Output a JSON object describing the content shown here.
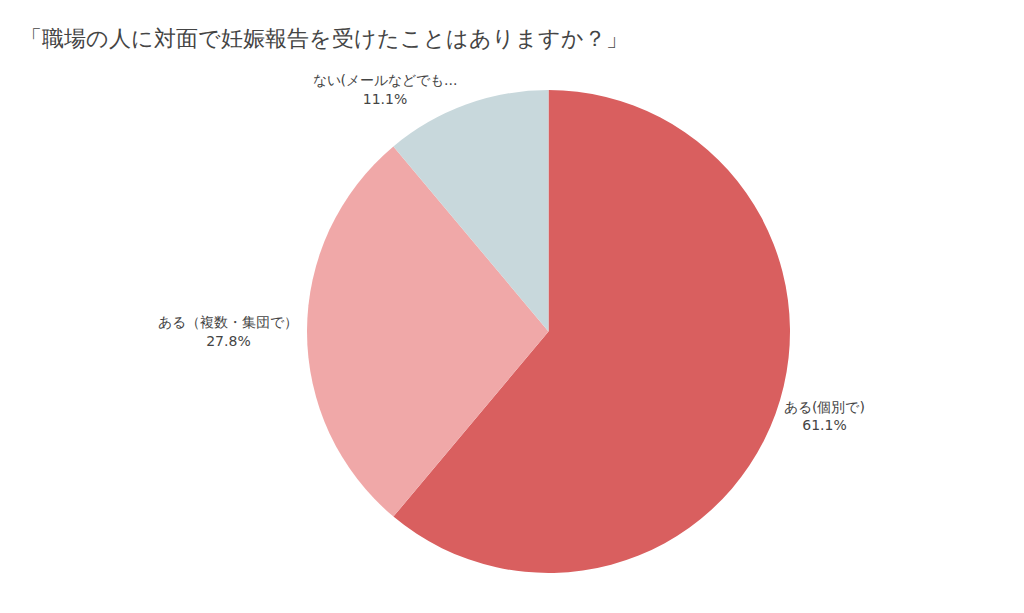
{
  "chart_data": {
    "type": "pie",
    "title": "「職場の人に対面で妊娠報告を受けたことはありますか？」",
    "categories": [
      "ある(個別で)",
      "ある（複数・集団で）",
      "ない(メールなどでも..."
    ],
    "values": [
      61.1,
      27.8,
      11.1
    ],
    "value_labels": [
      "61.1%",
      "27.8%",
      "11.1%"
    ],
    "colors": [
      "#d95f5f",
      "#f0a8a8",
      "#c8d8dc"
    ],
    "data_labels": true,
    "legend": false
  }
}
